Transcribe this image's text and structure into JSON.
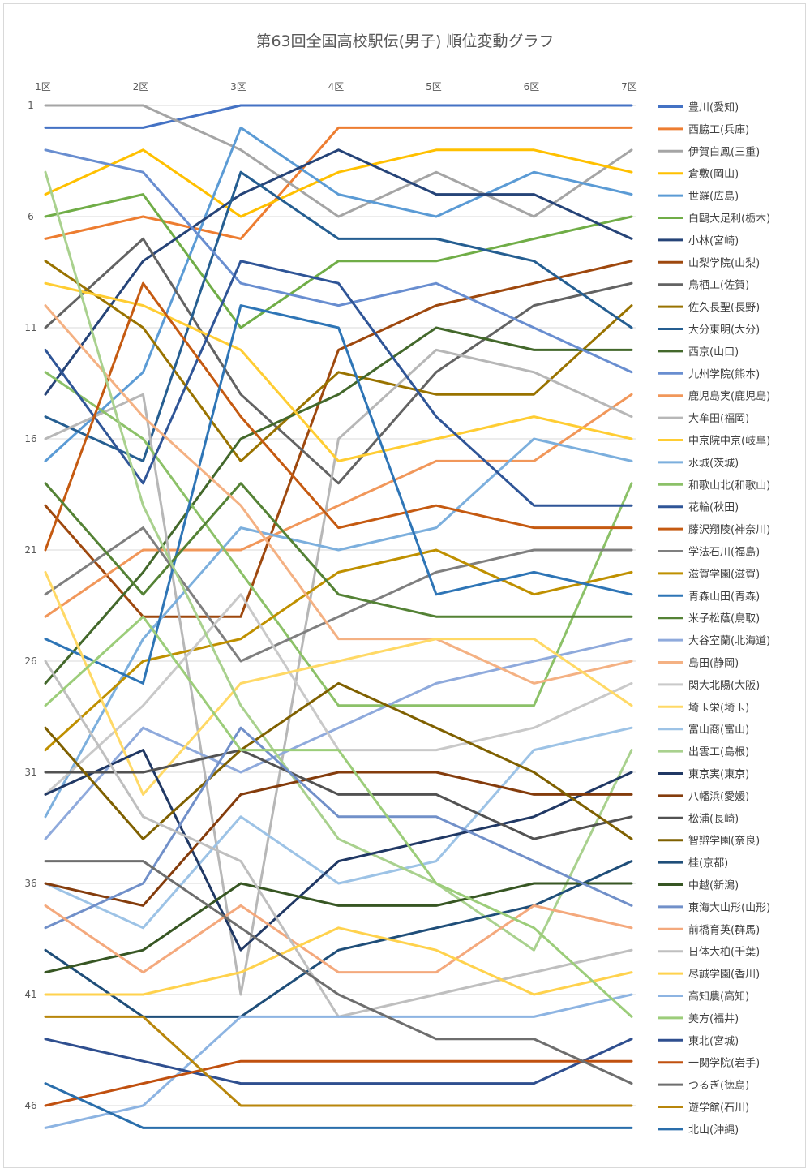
{
  "chart_data": {
    "type": "line",
    "title": "第63回全国高校駅伝(男子) 順位変動グラフ",
    "xlabel": "",
    "ylabel": "",
    "categories": [
      "1区",
      "2区",
      "3区",
      "4区",
      "5区",
      "6区",
      "7区"
    ],
    "y_ticks": [
      1,
      6,
      11,
      16,
      21,
      26,
      31,
      36,
      41,
      46
    ],
    "ylim": [
      1,
      47
    ],
    "y_reversed": true,
    "grid": true,
    "legend_position": "right",
    "series": [
      {
        "name": "豊川(愛知)",
        "color": "#4472c4",
        "values": [
          2,
          2,
          1,
          1,
          1,
          1,
          1
        ]
      },
      {
        "name": "西脇工(兵庫)",
        "color": "#ed7d31",
        "values": [
          7,
          6,
          7,
          2,
          2,
          2,
          2
        ]
      },
      {
        "name": "伊賀白鳳(三重)",
        "color": "#a5a5a5",
        "values": [
          1,
          1,
          3,
          6,
          4,
          6,
          3
        ]
      },
      {
        "name": "倉敷(岡山)",
        "color": "#ffc000",
        "values": [
          5,
          3,
          6,
          4,
          3,
          3,
          4
        ]
      },
      {
        "name": "世羅(広島)",
        "color": "#5b9bd5",
        "values": [
          17,
          13,
          2,
          5,
          6,
          4,
          5
        ]
      },
      {
        "name": "白鷗大足利(栃木)",
        "color": "#70ad47",
        "values": [
          6,
          5,
          11,
          8,
          8,
          7,
          6
        ]
      },
      {
        "name": "小林(宮崎)",
        "color": "#264478",
        "values": [
          14,
          8,
          5,
          3,
          5,
          5,
          7
        ]
      },
      {
        "name": "山梨学院(山梨)",
        "color": "#9e480e",
        "values": [
          19,
          24,
          24,
          12,
          10,
          9,
          8
        ]
      },
      {
        "name": "鳥栖工(佐賀)",
        "color": "#636363",
        "values": [
          11,
          7,
          14,
          18,
          13,
          10,
          9
        ]
      },
      {
        "name": "佐久長聖(長野)",
        "color": "#997300",
        "values": [
          8,
          11,
          17,
          13,
          14,
          14,
          10
        ]
      },
      {
        "name": "大分東明(大分)",
        "color": "#255e91",
        "values": [
          15,
          17,
          4,
          7,
          7,
          8,
          11
        ]
      },
      {
        "name": "西京(山口)",
        "color": "#43682b",
        "values": [
          27,
          22,
          16,
          14,
          11,
          12,
          12
        ]
      },
      {
        "name": "九州学院(熊本)",
        "color": "#698ed0",
        "values": [
          3,
          4,
          9,
          10,
          9,
          11,
          13
        ]
      },
      {
        "name": "鹿児島実(鹿児島)",
        "color": "#f1975a",
        "values": [
          24,
          21,
          21,
          19,
          17,
          17,
          14
        ]
      },
      {
        "name": "大牟田(福岡)",
        "color": "#b7b7b7",
        "values": [
          16,
          14,
          41,
          16,
          12,
          13,
          15
        ]
      },
      {
        "name": "中京院中京(岐阜)",
        "color": "#ffcd33",
        "values": [
          9,
          10,
          12,
          17,
          16,
          15,
          16
        ]
      },
      {
        "name": "水城(茨城)",
        "color": "#7cafdd",
        "values": [
          33,
          25,
          20,
          21,
          20,
          16,
          17
        ]
      },
      {
        "name": "和歌山北(和歌山)",
        "color": "#8cc168",
        "values": [
          13,
          16,
          22,
          28,
          28,
          28,
          18
        ]
      },
      {
        "name": "花輪(秋田)",
        "color": "#2f5597",
        "values": [
          12,
          18,
          8,
          9,
          15,
          19,
          19
        ]
      },
      {
        "name": "藤沢翔陵(神奈川)",
        "color": "#c55a11",
        "values": [
          21,
          9,
          15,
          20,
          19,
          20,
          20
        ]
      },
      {
        "name": "学法石川(福島)",
        "color": "#7f7f7f",
        "values": [
          23,
          20,
          26,
          24,
          22,
          21,
          21
        ]
      },
      {
        "name": "滋賀学園(滋賀)",
        "color": "#bf9000",
        "values": [
          30,
          26,
          25,
          22,
          21,
          23,
          22
        ]
      },
      {
        "name": "青森山田(青森)",
        "color": "#2e75b6",
        "values": [
          25,
          27,
          10,
          11,
          23,
          22,
          23
        ]
      },
      {
        "name": "米子松蔭(鳥取)",
        "color": "#548235",
        "values": [
          18,
          23,
          18,
          23,
          24,
          24,
          24
        ]
      },
      {
        "name": "大谷室蘭(北海道)",
        "color": "#8faadc",
        "values": [
          34,
          29,
          31,
          29,
          27,
          26,
          25
        ]
      },
      {
        "name": "島田(静岡)",
        "color": "#f4b183",
        "values": [
          10,
          15,
          19,
          25,
          25,
          27,
          26
        ]
      },
      {
        "name": "関大北陽(大阪)",
        "color": "#c9c9c9",
        "values": [
          32,
          28,
          23,
          30,
          30,
          29,
          27
        ]
      },
      {
        "name": "埼玉栄(埼玉)",
        "color": "#ffd966",
        "values": [
          22,
          32,
          27,
          26,
          25,
          25,
          28
        ]
      },
      {
        "name": "富山商(富山)",
        "color": "#9dc3e6",
        "values": [
          36,
          38,
          33,
          36,
          35,
          30,
          29
        ]
      },
      {
        "name": "出雲工(島根)",
        "color": "#a9d18e",
        "values": [
          4,
          19,
          28,
          34,
          36,
          39,
          30
        ]
      },
      {
        "name": "東京実(東京)",
        "color": "#203864",
        "values": [
          32,
          30,
          39,
          35,
          34,
          33,
          31
        ]
      },
      {
        "name": "八幡浜(愛媛)",
        "color": "#843c0c",
        "values": [
          36,
          37,
          32,
          31,
          31,
          32,
          32
        ]
      },
      {
        "name": "松浦(長崎)",
        "color": "#525252",
        "values": [
          31,
          31,
          30,
          32,
          32,
          34,
          33
        ]
      },
      {
        "name": "智辯学園(奈良)",
        "color": "#7f6000",
        "values": [
          29,
          34,
          30,
          27,
          29,
          31,
          34
        ]
      },
      {
        "name": "桂(京都)",
        "color": "#1f4e79",
        "values": [
          39,
          42,
          42,
          39,
          38,
          37,
          35
        ]
      },
      {
        "name": "中越(新潟)",
        "color": "#375623",
        "values": [
          40,
          39,
          36,
          37,
          37,
          36,
          36
        ]
      },
      {
        "name": "東海大山形(山形)",
        "color": "#7190c9",
        "values": [
          38,
          36,
          29,
          33,
          33,
          35,
          37
        ]
      },
      {
        "name": "前橋育英(群馬)",
        "color": "#f4a97d",
        "values": [
          37,
          40,
          37,
          40,
          40,
          37,
          38
        ]
      },
      {
        "name": "日体大柏(千葉)",
        "color": "#bfbfbf",
        "values": [
          26,
          33,
          35,
          42,
          41,
          40,
          39
        ]
      },
      {
        "name": "尽誠学園(香川)",
        "color": "#ffd24d",
        "values": [
          41,
          41,
          40,
          38,
          39,
          41,
          40
        ]
      },
      {
        "name": "高知農(高知)",
        "color": "#8db4e2",
        "values": [
          47,
          46,
          42,
          42,
          42,
          42,
          41
        ]
      },
      {
        "name": "美方(福井)",
        "color": "#9ccd7a",
        "values": [
          28,
          24,
          30,
          30,
          36,
          38,
          42
        ]
      },
      {
        "name": "東北(宮城)",
        "color": "#2f4f8f",
        "values": [
          43,
          44,
          45,
          45,
          45,
          45,
          43
        ]
      },
      {
        "name": "一関学院(岩手)",
        "color": "#c0500f",
        "values": [
          46,
          45,
          44,
          44,
          44,
          44,
          44
        ]
      },
      {
        "name": "つるぎ(徳島)",
        "color": "#6e6e6e",
        "values": [
          35,
          35,
          38,
          41,
          43,
          43,
          45
        ]
      },
      {
        "name": "遊学館(石川)",
        "color": "#b8860b",
        "values": [
          42,
          42,
          46,
          46,
          46,
          46,
          46
        ]
      },
      {
        "name": "北山(沖縄)",
        "color": "#2a6eab",
        "values": [
          45,
          47,
          47,
          47,
          47,
          47,
          47
        ]
      }
    ]
  }
}
